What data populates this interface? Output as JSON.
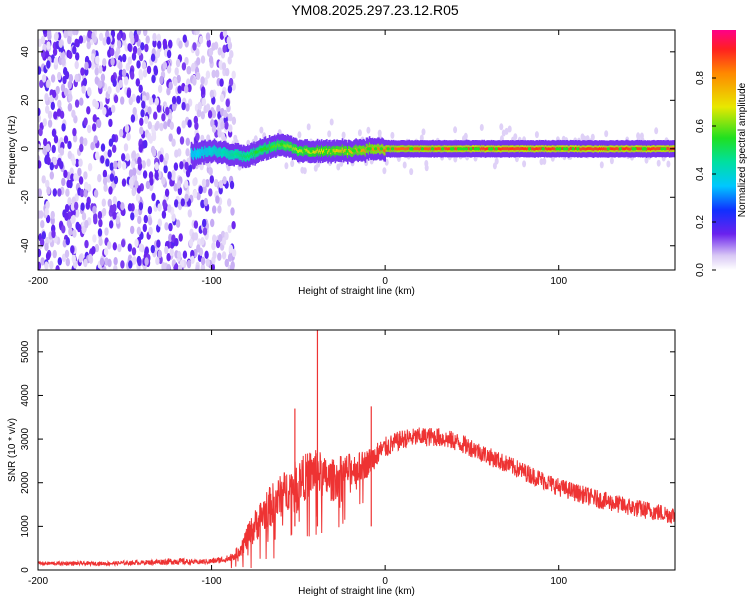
{
  "title": "YM08.2025.297.23.12.R05",
  "chart_data": [
    {
      "type": "heatmap",
      "xlabel": "Height of straight line (km)",
      "ylabel": "Frequency (Hz)",
      "xlim": [
        -200,
        167
      ],
      "ylim": [
        -50,
        49
      ],
      "xticks": [
        -200,
        -100,
        0,
        100
      ],
      "yticks": [
        -40,
        -20,
        0,
        20,
        40
      ],
      "colorbar": {
        "label": "Normalized spectral amplitude",
        "range": [
          0,
          1
        ],
        "ticks": [
          "0.0",
          "0.2",
          "0.4",
          "0.6",
          "0.8"
        ]
      },
      "signal_trace": {
        "x": [
          -110,
          -100,
          -90,
          -80,
          -70,
          -60,
          -50,
          -40,
          -30,
          -20,
          -10,
          0,
          50,
          100,
          167
        ],
        "y": [
          -2,
          -1,
          -2,
          -3,
          0,
          2,
          -1,
          -1,
          -1,
          -1,
          0,
          0,
          0,
          0,
          0
        ],
        "amplitude": [
          0.35,
          0.4,
          0.45,
          0.5,
          0.55,
          0.6,
          0.65,
          0.7,
          0.72,
          0.75,
          0.8,
          0.85,
          0.9,
          0.9,
          0.9
        ]
      },
      "noise_region_x": [
        -200,
        -87
      ]
    },
    {
      "type": "line",
      "xlabel": "Height of straight line (km)",
      "ylabel": "SNR (10 * v/v)",
      "xlim": [
        -200,
        167
      ],
      "ylim": [
        0,
        5500
      ],
      "xticks": [
        -200,
        -100,
        0,
        100
      ],
      "yticks": [
        0,
        1000,
        2000,
        3000,
        4000,
        5000
      ],
      "color": "#ee3333",
      "series": [
        {
          "x": [
            -200,
            -180,
            -160,
            -140,
            -120,
            -110,
            -100,
            -90,
            -85,
            -80,
            -75,
            -70,
            -65,
            -60,
            -55,
            -50,
            -45,
            -40,
            -35,
            -30,
            -25,
            -20,
            -15,
            -10,
            -5,
            0,
            10,
            20,
            30,
            40,
            50,
            60,
            80,
            100,
            120,
            140,
            167
          ],
          "y": [
            150,
            150,
            150,
            170,
            200,
            180,
            200,
            260,
            400,
            700,
            1000,
            1300,
            1500,
            1700,
            1900,
            2050,
            2150,
            2300,
            2100,
            2050,
            2200,
            2300,
            2350,
            2450,
            2650,
            2800,
            3000,
            3050,
            3050,
            2950,
            2800,
            2600,
            2250,
            1900,
            1650,
            1450,
            1250
          ],
          "spread": [
            80,
            80,
            80,
            90,
            150,
            100,
            120,
            150,
            250,
            500,
            700,
            800,
            900,
            900,
            900,
            900,
            1000,
            1000,
            900,
            900,
            800,
            700,
            650,
            600,
            500,
            450,
            400,
            400,
            400,
            400,
            400,
            380,
            380,
            380,
            380,
            380,
            380
          ]
        }
      ],
      "annotations": [
        {
          "x": -39,
          "y": 5500
        },
        {
          "x": -52,
          "y": 3700
        },
        {
          "x": -8,
          "y": 3750
        }
      ]
    }
  ]
}
